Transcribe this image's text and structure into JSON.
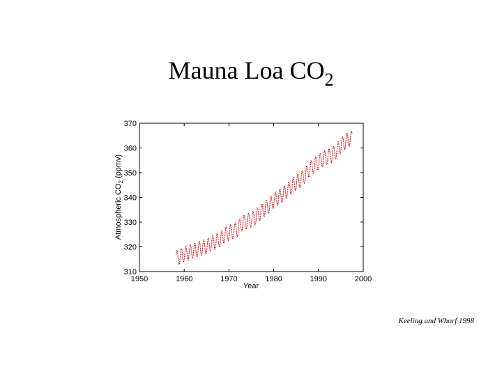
{
  "slide": {
    "title_main": "Mauna Loa CO",
    "title_sub": "2",
    "credit": "Keeling and Whorf 1998"
  },
  "chart_data": {
    "type": "line",
    "title": "",
    "xlabel": "Year",
    "ylabel": "Atmospheric CO",
    "ylabel_sub": "2",
    "ylabel_unit": " (ppmv)",
    "xlim": [
      1950,
      2000
    ],
    "ylim": [
      310,
      370
    ],
    "xticks": [
      1950,
      1960,
      1970,
      1980,
      1990,
      2000
    ],
    "yticks": [
      310,
      320,
      330,
      340,
      350,
      360,
      370
    ],
    "grid": false,
    "legend": "none",
    "series": [
      {
        "color": "#d40000",
        "style": "dotted",
        "annual_mean": {
          "x": [
            1958,
            1959,
            1960,
            1961,
            1962,
            1963,
            1964,
            1965,
            1966,
            1967,
            1968,
            1969,
            1970,
            1971,
            1972,
            1973,
            1974,
            1975,
            1976,
            1977,
            1978,
            1979,
            1980,
            1981,
            1982,
            1983,
            1984,
            1985,
            1986,
            1987,
            1988,
            1989,
            1990,
            1991,
            1992,
            1993,
            1994,
            1995,
            1996,
            1997
          ],
          "y": [
            315.3,
            316.0,
            316.9,
            317.6,
            318.4,
            319.0,
            319.6,
            320.0,
            321.3,
            322.1,
            323.0,
            324.6,
            325.7,
            326.3,
            327.4,
            329.7,
            330.2,
            331.1,
            332.0,
            333.8,
            335.4,
            336.8,
            338.7,
            339.9,
            341.1,
            342.8,
            344.4,
            345.9,
            347.2,
            348.9,
            351.5,
            352.9,
            354.2,
            355.6,
            356.4,
            357.1,
            358.9,
            360.9,
            362.6,
            363.8
          ]
        },
        "seasonal_amplitude": 3.0
      }
    ]
  }
}
